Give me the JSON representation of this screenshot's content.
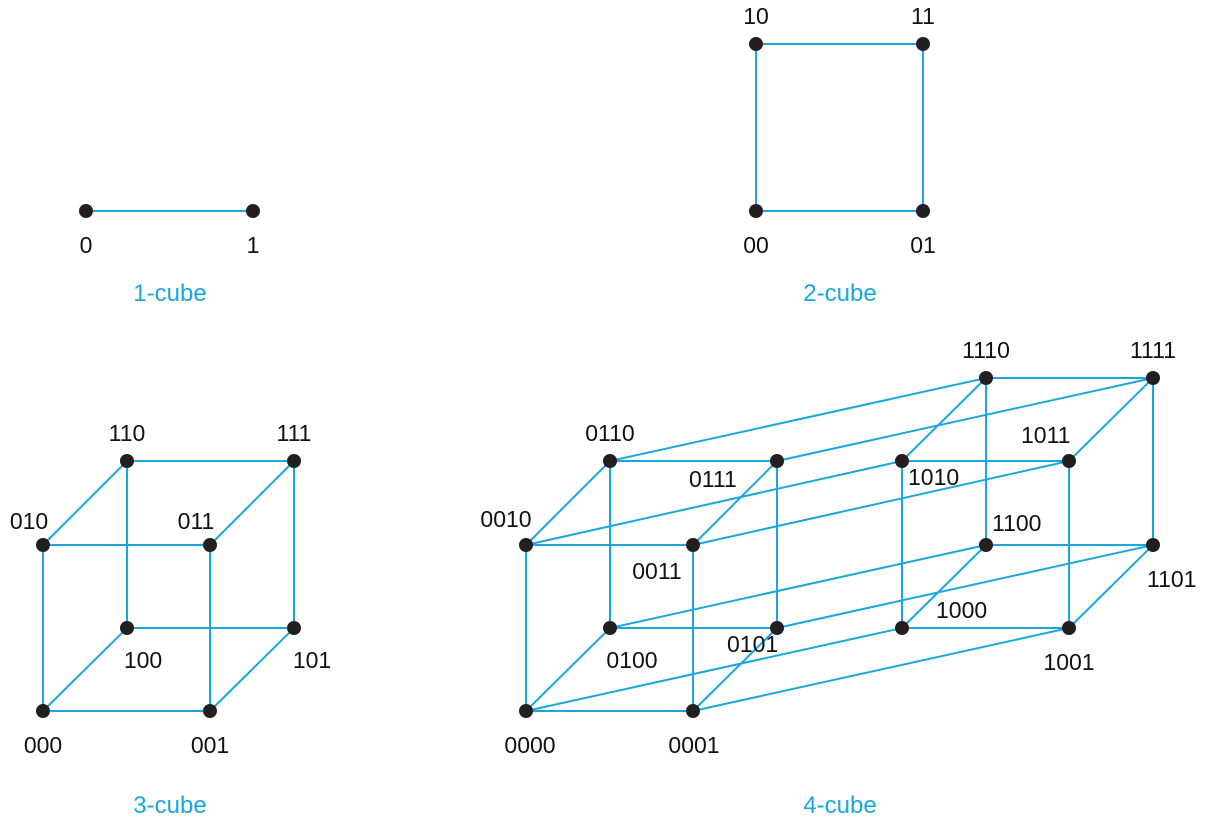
{
  "colors": {
    "edge": "#1aa7df",
    "node": "#231f20",
    "label": "#111111",
    "caption": "#1aa7df"
  },
  "cubes": [
    {
      "id": "1cube",
      "caption": "1-cube",
      "nodes": [
        {
          "label": "0",
          "v": [
            86,
            211
          ]
        },
        {
          "label": "1",
          "v": [
            253,
            211
          ]
        }
      ]
    },
    {
      "id": "2cube",
      "caption": "2-cube",
      "nodes": [
        {
          "label": "00",
          "v": [
            756,
            211
          ]
        },
        {
          "label": "01",
          "v": [
            923,
            211
          ]
        },
        {
          "label": "10",
          "v": [
            756,
            44
          ]
        },
        {
          "label": "11",
          "v": [
            923,
            44
          ]
        }
      ]
    },
    {
      "id": "3cube",
      "caption": "3-cube",
      "nodes": [
        {
          "label": "000",
          "v": [
            43,
            711
          ]
        },
        {
          "label": "001",
          "v": [
            210,
            711
          ]
        },
        {
          "label": "010",
          "v": [
            43,
            545
          ]
        },
        {
          "label": "011",
          "v": [
            210,
            545
          ]
        },
        {
          "label": "100",
          "v": [
            127,
            628
          ]
        },
        {
          "label": "101",
          "v": [
            294,
            628
          ]
        },
        {
          "label": "110",
          "v": [
            127,
            461
          ]
        },
        {
          "label": "111",
          "v": [
            294,
            461
          ]
        }
      ]
    },
    {
      "id": "4cube",
      "caption": "4-cube",
      "nodes": [
        {
          "label": "0000",
          "v": [
            526,
            711
          ]
        },
        {
          "label": "0001",
          "v": [
            693,
            711
          ]
        },
        {
          "label": "0010",
          "v": [
            526,
            545
          ]
        },
        {
          "label": "0011",
          "v": [
            693,
            545
          ]
        },
        {
          "label": "0100",
          "v": [
            610,
            628
          ]
        },
        {
          "label": "0101",
          "v": [
            777,
            628
          ]
        },
        {
          "label": "0110",
          "v": [
            610,
            461
          ]
        },
        {
          "label": "0111",
          "v": [
            777,
            461
          ]
        },
        {
          "label": "1000",
          "v": [
            902,
            628
          ]
        },
        {
          "label": "1001",
          "v": [
            1069,
            628
          ]
        },
        {
          "label": "1010",
          "v": [
            902,
            461
          ]
        },
        {
          "label": "1011",
          "v": [
            1069,
            461
          ]
        },
        {
          "label": "1100",
          "v": [
            986,
            545
          ]
        },
        {
          "label": "1101",
          "v": [
            1153,
            545
          ]
        },
        {
          "label": "1110",
          "v": [
            986,
            378
          ]
        },
        {
          "label": "1111",
          "v": [
            1153,
            378
          ]
        }
      ]
    }
  ]
}
